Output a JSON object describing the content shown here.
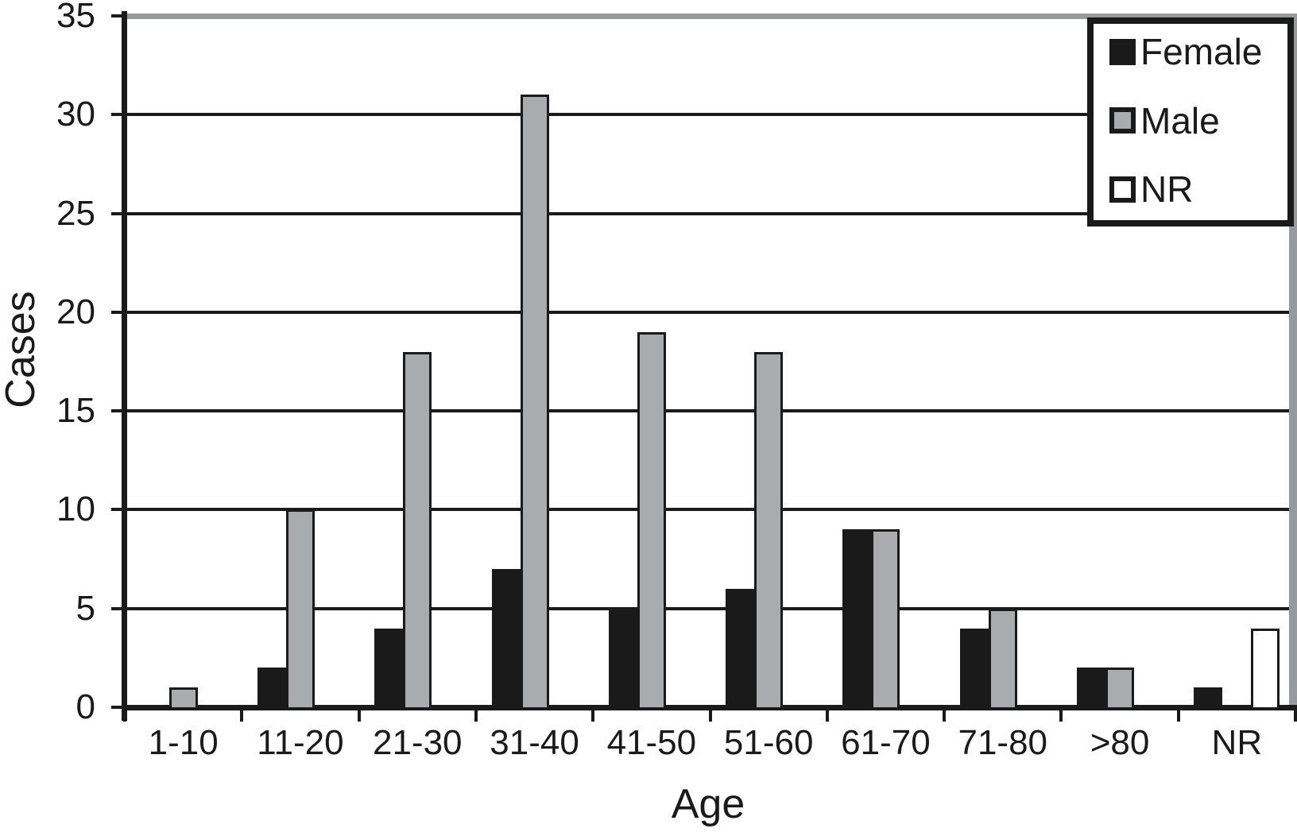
{
  "chart_data": {
    "type": "bar",
    "title": "",
    "xlabel": "Age",
    "ylabel": "Cases",
    "categories": [
      "1-10",
      "11-20",
      "21-30",
      "31-40",
      "41-50",
      "51-60",
      "61-70",
      "71-80",
      ">80",
      "NR"
    ],
    "series": [
      {
        "name": "Female",
        "color": "#1a1a1a",
        "values": [
          0,
          2,
          4,
          7,
          5,
          6,
          9,
          4,
          2,
          1
        ]
      },
      {
        "name": "Male",
        "color": "#a9abad",
        "values": [
          1,
          10,
          18,
          31,
          19,
          18,
          9,
          5,
          2,
          0
        ]
      },
      {
        "name": "NR",
        "color": "#ffffff",
        "values": [
          0,
          0,
          0,
          0,
          0,
          0,
          0,
          0,
          0,
          4
        ]
      }
    ],
    "ylim": [
      0,
      35
    ],
    "yticks": [
      0,
      5,
      10,
      15,
      20,
      25,
      30,
      35
    ],
    "grid": "horizontal",
    "legend_position": "top-right"
  },
  "colors": {
    "bar_outline": "#1a1a1a",
    "axis": "#1a1a1a",
    "gridline": "#1a1a1a",
    "plot_shadow": "#97999b",
    "background": "#ffffff"
  }
}
